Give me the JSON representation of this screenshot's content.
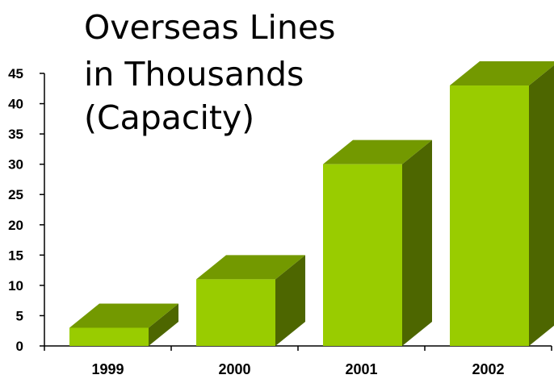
{
  "chart_data": {
    "type": "bar",
    "title_lines": [
      "Overseas Lines",
      "in Thousands",
      "(Capacity)"
    ],
    "categories": [
      "1999",
      "2000",
      "2001",
      "2002"
    ],
    "values": [
      3,
      11,
      30,
      43
    ],
    "ylim": [
      0,
      45
    ],
    "yticks": [
      "0",
      "5",
      "10",
      "15",
      "20",
      "25",
      "30",
      "35",
      "40",
      "45"
    ],
    "grid": false,
    "style": "3d-column",
    "colors": {
      "front": "#99cc00",
      "top": "#739900",
      "side": "#4d6600"
    }
  }
}
